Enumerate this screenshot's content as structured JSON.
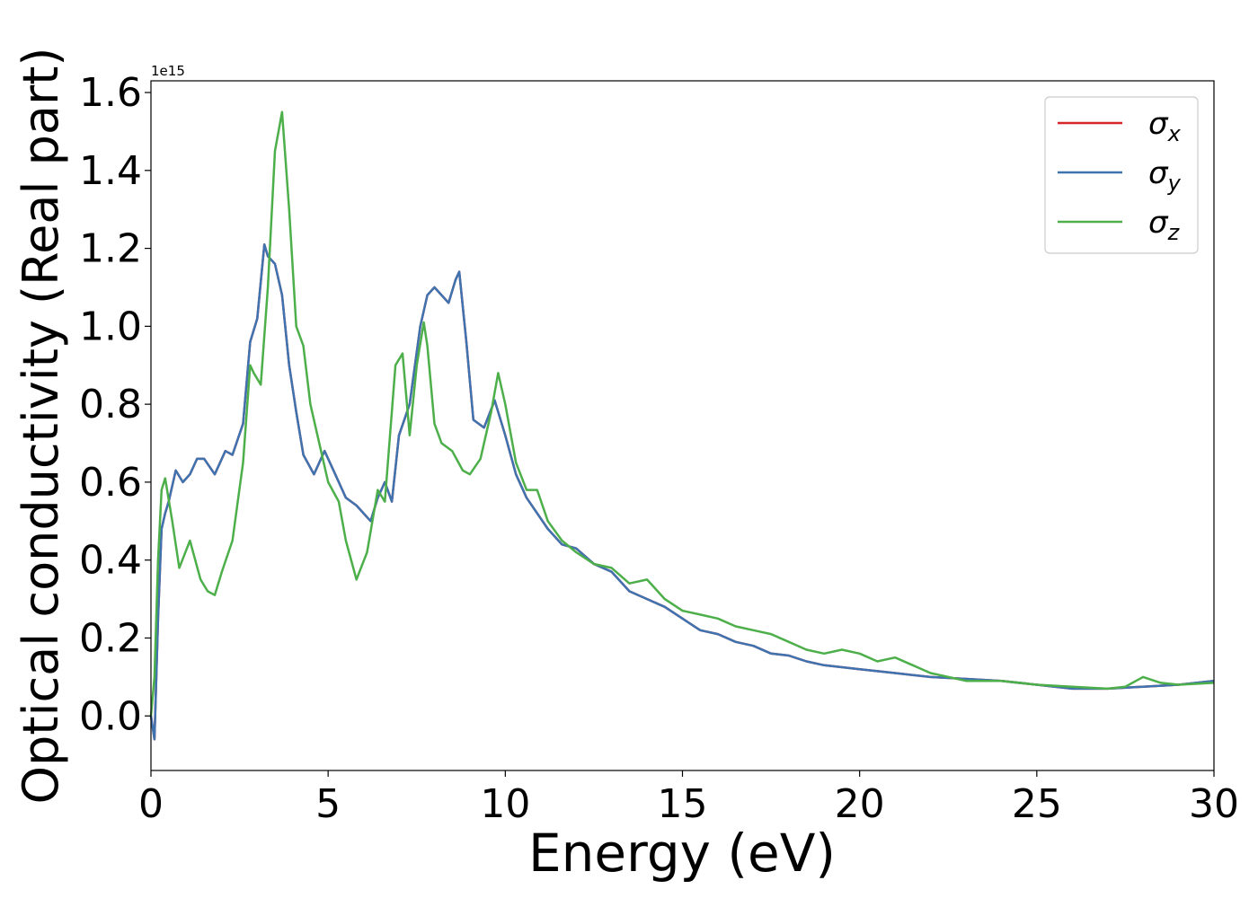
{
  "chart_data": {
    "type": "line",
    "title": "",
    "xlabel": "Energy (eV)",
    "ylabel": "Optical conductivity (Real part)",
    "y_offset_label": "1e15",
    "xlim": [
      0,
      30
    ],
    "ylim": [
      -0.14,
      1.63
    ],
    "x_ticks": [
      0,
      5,
      10,
      15,
      20,
      25,
      30
    ],
    "y_ticks": [
      0.0,
      0.2,
      0.4,
      0.6,
      0.8,
      1.0,
      1.2,
      1.4,
      1.6
    ],
    "x_tick_labels": [
      "0",
      "5",
      "10",
      "15",
      "20",
      "25",
      "30"
    ],
    "y_tick_labels": [
      "0.0",
      "0.2",
      "0.4",
      "0.6",
      "0.8",
      "1.0",
      "1.2",
      "1.4",
      "1.6"
    ],
    "grid": false,
    "legend_position": "top-right",
    "series": [
      {
        "name": "σx",
        "legend_base": "σ",
        "legend_sub": "x",
        "color": "#d62728",
        "x": [
          0,
          0.1,
          0.2,
          0.3,
          0.4,
          0.5,
          0.7,
          0.9,
          1.1,
          1.3,
          1.5,
          1.8,
          2.1,
          2.3,
          2.6,
          2.8,
          3.0,
          3.2,
          3.3,
          3.5,
          3.7,
          3.9,
          4.1,
          4.3,
          4.6,
          4.9,
          5.2,
          5.5,
          5.8,
          6.0,
          6.2,
          6.4,
          6.6,
          6.8,
          7.0,
          7.3,
          7.6,
          7.8,
          8.0,
          8.2,
          8.4,
          8.6,
          8.7,
          8.9,
          9.1,
          9.4,
          9.7,
          10.0,
          10.3,
          10.6,
          10.9,
          11.2,
          11.6,
          12.0,
          12.5,
          13.0,
          13.5,
          14.0,
          14.5,
          15.0,
          15.5,
          16.0,
          16.5,
          17.0,
          17.5,
          18.0,
          18.5,
          19.0,
          19.5,
          20.0,
          21.0,
          22.0,
          23.0,
          24.0,
          25.0,
          26.0,
          27.0,
          28.0,
          29.0,
          30.0
        ],
        "values": [
          0.0,
          -0.06,
          0.25,
          0.48,
          0.52,
          0.55,
          0.63,
          0.6,
          0.62,
          0.66,
          0.66,
          0.62,
          0.68,
          0.67,
          0.75,
          0.96,
          1.02,
          1.21,
          1.18,
          1.16,
          1.08,
          0.9,
          0.78,
          0.67,
          0.62,
          0.68,
          0.62,
          0.56,
          0.54,
          0.52,
          0.5,
          0.56,
          0.6,
          0.55,
          0.72,
          0.8,
          1.0,
          1.08,
          1.1,
          1.08,
          1.06,
          1.12,
          1.14,
          0.96,
          0.76,
          0.74,
          0.81,
          0.72,
          0.62,
          0.56,
          0.52,
          0.48,
          0.44,
          0.43,
          0.39,
          0.37,
          0.32,
          0.3,
          0.28,
          0.25,
          0.22,
          0.21,
          0.19,
          0.18,
          0.16,
          0.155,
          0.14,
          0.13,
          0.125,
          0.12,
          0.11,
          0.1,
          0.095,
          0.09,
          0.08,
          0.07,
          0.07,
          0.075,
          0.08,
          0.09
        ]
      },
      {
        "name": "σy",
        "legend_base": "σ",
        "legend_sub": "y",
        "color": "#3f73b0",
        "x": [
          0,
          0.1,
          0.2,
          0.3,
          0.4,
          0.5,
          0.7,
          0.9,
          1.1,
          1.3,
          1.5,
          1.8,
          2.1,
          2.3,
          2.6,
          2.8,
          3.0,
          3.2,
          3.3,
          3.5,
          3.7,
          3.9,
          4.1,
          4.3,
          4.6,
          4.9,
          5.2,
          5.5,
          5.8,
          6.0,
          6.2,
          6.4,
          6.6,
          6.8,
          7.0,
          7.3,
          7.6,
          7.8,
          8.0,
          8.2,
          8.4,
          8.6,
          8.7,
          8.9,
          9.1,
          9.4,
          9.7,
          10.0,
          10.3,
          10.6,
          10.9,
          11.2,
          11.6,
          12.0,
          12.5,
          13.0,
          13.5,
          14.0,
          14.5,
          15.0,
          15.5,
          16.0,
          16.5,
          17.0,
          17.5,
          18.0,
          18.5,
          19.0,
          19.5,
          20.0,
          21.0,
          22.0,
          23.0,
          24.0,
          25.0,
          26.0,
          27.0,
          28.0,
          29.0,
          30.0
        ],
        "values": [
          0.0,
          -0.06,
          0.25,
          0.48,
          0.52,
          0.55,
          0.63,
          0.6,
          0.62,
          0.66,
          0.66,
          0.62,
          0.68,
          0.67,
          0.75,
          0.96,
          1.02,
          1.21,
          1.18,
          1.16,
          1.08,
          0.9,
          0.78,
          0.67,
          0.62,
          0.68,
          0.62,
          0.56,
          0.54,
          0.52,
          0.5,
          0.56,
          0.6,
          0.55,
          0.72,
          0.8,
          1.0,
          1.08,
          1.1,
          1.08,
          1.06,
          1.12,
          1.14,
          0.96,
          0.76,
          0.74,
          0.81,
          0.72,
          0.62,
          0.56,
          0.52,
          0.48,
          0.44,
          0.43,
          0.39,
          0.37,
          0.32,
          0.3,
          0.28,
          0.25,
          0.22,
          0.21,
          0.19,
          0.18,
          0.16,
          0.155,
          0.14,
          0.13,
          0.125,
          0.12,
          0.11,
          0.1,
          0.095,
          0.09,
          0.08,
          0.07,
          0.07,
          0.075,
          0.08,
          0.09
        ]
      },
      {
        "name": "σz",
        "legend_base": "σ",
        "legend_sub": "z",
        "color": "#4daf4a",
        "x": [
          0,
          0.1,
          0.2,
          0.3,
          0.4,
          0.6,
          0.8,
          1.1,
          1.4,
          1.6,
          1.8,
          2.0,
          2.3,
          2.6,
          2.8,
          2.9,
          3.1,
          3.3,
          3.5,
          3.7,
          3.9,
          4.1,
          4.3,
          4.5,
          4.7,
          5.0,
          5.3,
          5.5,
          5.8,
          6.1,
          6.4,
          6.6,
          6.9,
          7.1,
          7.3,
          7.5,
          7.7,
          7.8,
          8.0,
          8.2,
          8.5,
          8.8,
          9.0,
          9.3,
          9.6,
          9.8,
          10.0,
          10.3,
          10.6,
          10.9,
          11.2,
          11.6,
          12.0,
          12.5,
          13.0,
          13.5,
          14.0,
          14.5,
          15.0,
          15.5,
          16.0,
          16.5,
          17.0,
          17.5,
          18.0,
          18.5,
          19.0,
          19.5,
          20.0,
          20.5,
          21.0,
          21.5,
          22.0,
          23.0,
          24.0,
          25.0,
          26.0,
          27.0,
          27.5,
          28.0,
          28.5,
          29.0,
          30.0
        ],
        "values": [
          0.0,
          0.1,
          0.4,
          0.58,
          0.61,
          0.5,
          0.38,
          0.45,
          0.35,
          0.32,
          0.31,
          0.37,
          0.45,
          0.65,
          0.9,
          0.88,
          0.85,
          1.1,
          1.45,
          1.55,
          1.3,
          1.0,
          0.95,
          0.8,
          0.72,
          0.6,
          0.55,
          0.45,
          0.35,
          0.42,
          0.58,
          0.55,
          0.9,
          0.93,
          0.72,
          0.9,
          1.01,
          0.95,
          0.75,
          0.7,
          0.68,
          0.63,
          0.62,
          0.66,
          0.78,
          0.88,
          0.8,
          0.65,
          0.58,
          0.58,
          0.5,
          0.45,
          0.42,
          0.39,
          0.38,
          0.34,
          0.35,
          0.3,
          0.27,
          0.26,
          0.25,
          0.23,
          0.22,
          0.21,
          0.19,
          0.17,
          0.16,
          0.17,
          0.16,
          0.14,
          0.15,
          0.13,
          0.11,
          0.09,
          0.09,
          0.08,
          0.075,
          0.07,
          0.075,
          0.1,
          0.085,
          0.08,
          0.085
        ]
      }
    ]
  }
}
